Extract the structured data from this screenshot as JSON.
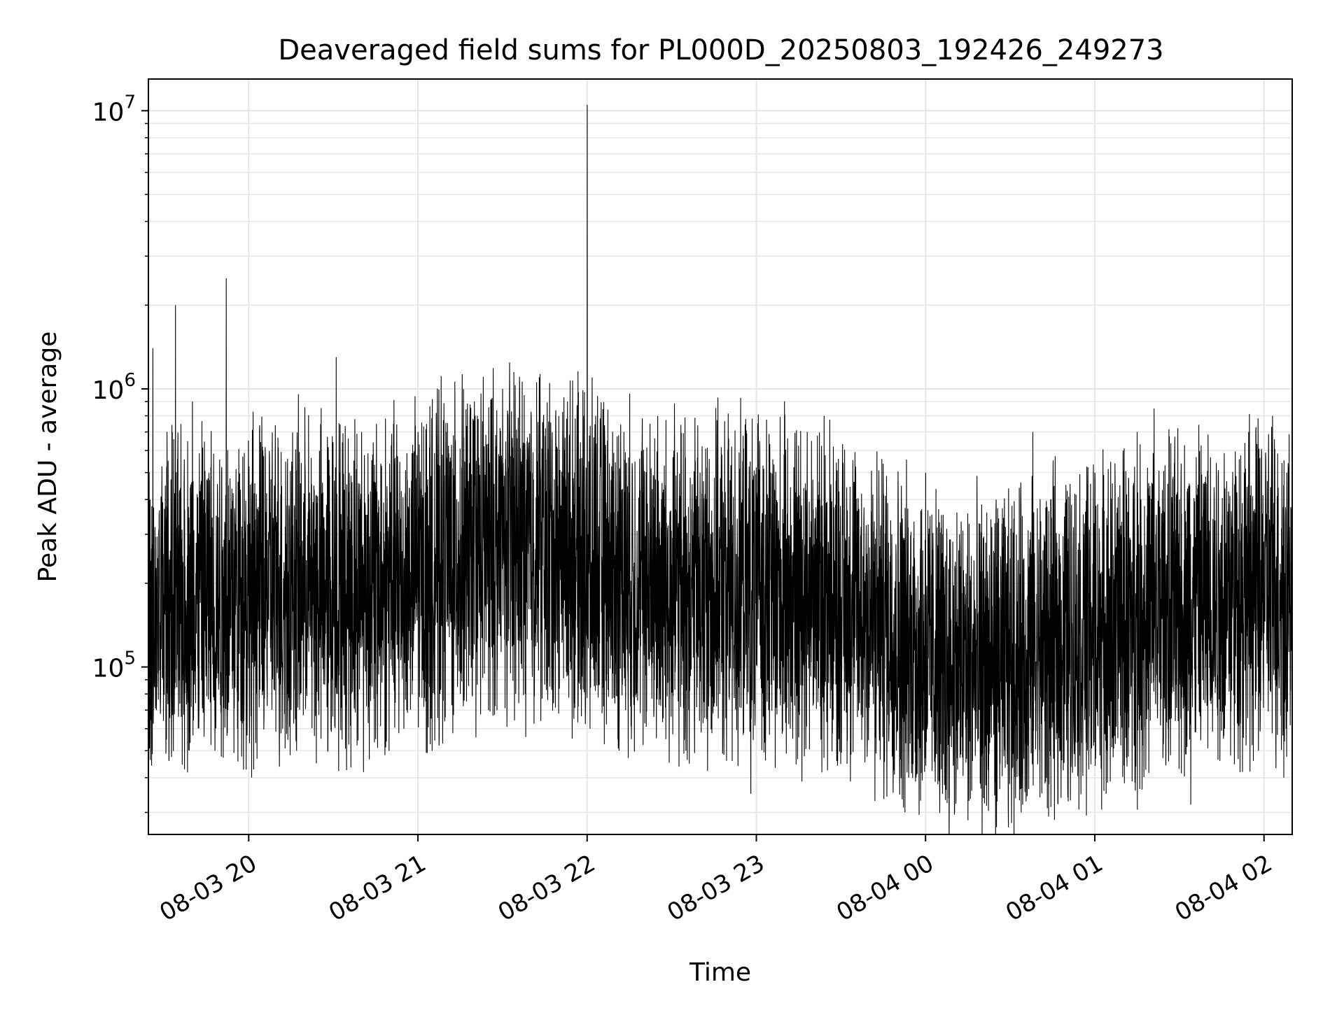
{
  "chart_data": {
    "type": "line",
    "title": "Deaveraged field sums for PL000D_20250803_192426_249273",
    "xlabel": "Time",
    "ylabel": "Peak ADU - average",
    "yscale": "log",
    "grid": true,
    "line_color": "#000000",
    "grid_color": "#e6e6e6",
    "xlim": [
      "2025-08-03 19:24:26",
      "2025-08-04 02:10:00"
    ],
    "ylim": [
      25000,
      13000000
    ],
    "x_ticks": [
      {
        "label": "08-03 20",
        "value": "2025-08-03 20:00"
      },
      {
        "label": "08-03 21",
        "value": "2025-08-03 21:00"
      },
      {
        "label": "08-03 22",
        "value": "2025-08-03 22:00"
      },
      {
        "label": "08-03 23",
        "value": "2025-08-03 23:00"
      },
      {
        "label": "08-04 00",
        "value": "2025-08-04 00:00"
      },
      {
        "label": "08-04 01",
        "value": "2025-08-04 01:00"
      },
      {
        "label": "08-04 02",
        "value": "2025-08-04 02:00"
      }
    ],
    "y_ticks": [
      {
        "base": "10",
        "exp": "5",
        "value": 100000
      },
      {
        "base": "10",
        "exp": "6",
        "value": 1000000
      },
      {
        "base": "10",
        "exp": "7",
        "value": 10000000
      }
    ],
    "series": [
      {
        "points": [
          [
            "2025-08-03 19:25",
            400000
          ],
          [
            "2025-08-03 19:26",
            1400000
          ],
          [
            "2025-08-03 19:28",
            120000
          ],
          [
            "2025-08-03 19:31",
            700000
          ],
          [
            "2025-08-03 19:34",
            2000000
          ],
          [
            "2025-08-03 19:37",
            80000
          ],
          [
            "2025-08-03 19:40",
            900000
          ],
          [
            "2025-08-03 19:44",
            400000
          ],
          [
            "2025-08-03 19:48",
            50000
          ],
          [
            "2025-08-03 19:52",
            2500000
          ],
          [
            "2025-08-03 19:56",
            60000
          ],
          [
            "2025-08-03 19:59",
            300000
          ],
          [
            "2025-08-03 20:01",
            40000
          ],
          [
            "2025-08-03 20:05",
            600000
          ],
          [
            "2025-08-03 20:12",
            60000
          ],
          [
            "2025-08-03 20:20",
            500000
          ],
          [
            "2025-08-03 20:28",
            50000
          ],
          [
            "2025-08-03 20:31",
            1300000
          ],
          [
            "2025-08-03 20:36",
            80000
          ],
          [
            "2025-08-03 20:40",
            700000
          ],
          [
            "2025-08-03 20:45",
            55000
          ],
          [
            "2025-08-03 20:50",
            400000
          ],
          [
            "2025-08-03 20:55",
            60000
          ],
          [
            "2025-08-03 21:00",
            700000
          ],
          [
            "2025-08-03 21:05",
            50000
          ],
          [
            "2025-08-03 21:10",
            700000
          ],
          [
            "2025-08-03 21:15",
            80000
          ],
          [
            "2025-08-03 21:20",
            900000
          ],
          [
            "2025-08-03 21:25",
            70000
          ],
          [
            "2025-08-03 21:30",
            1000000
          ],
          [
            "2025-08-03 21:34",
            1150000
          ],
          [
            "2025-08-03 21:38",
            80000
          ],
          [
            "2025-08-03 21:43",
            1100000
          ],
          [
            "2025-08-03 21:48",
            200000
          ],
          [
            "2025-08-03 21:53",
            900000
          ],
          [
            "2025-08-03 21:57",
            180000
          ],
          [
            "2025-08-03 22:00",
            10500000
          ],
          [
            "2025-08-03 22:01",
            60000
          ],
          [
            "2025-08-03 22:03",
            800000
          ],
          [
            "2025-08-03 22:08",
            150000
          ],
          [
            "2025-08-03 22:13",
            700000
          ],
          [
            "2025-08-03 22:18",
            120000
          ],
          [
            "2025-08-03 22:25",
            800000
          ],
          [
            "2025-08-03 22:35",
            50000
          ],
          [
            "2025-08-03 22:40",
            500000
          ],
          [
            "2025-08-03 22:47",
            80000
          ],
          [
            "2025-08-03 22:55",
            400000
          ],
          [
            "2025-08-03 22:58",
            35000
          ],
          [
            "2025-08-03 23:05",
            500000
          ],
          [
            "2025-08-03 23:12",
            60000
          ],
          [
            "2025-08-03 23:18",
            700000
          ],
          [
            "2025-08-03 23:24",
            800000
          ],
          [
            "2025-08-03 23:30",
            50000
          ],
          [
            "2025-08-03 23:36",
            400000
          ],
          [
            "2025-08-03 23:42",
            33000
          ],
          [
            "2025-08-03 23:48",
            300000
          ],
          [
            "2025-08-03 23:54",
            40000
          ],
          [
            "2025-08-04 00:00",
            500000
          ],
          [
            "2025-08-04 00:06",
            35000
          ],
          [
            "2025-08-04 00:12",
            300000
          ],
          [
            "2025-08-04 00:18",
            60000
          ],
          [
            "2025-08-04 00:25",
            400000
          ],
          [
            "2025-08-04 00:33",
            70000
          ],
          [
            "2025-08-04 00:38",
            700000
          ],
          [
            "2025-08-04 00:44",
            60000
          ],
          [
            "2025-08-04 00:50",
            400000
          ],
          [
            "2025-08-04 00:55",
            50000
          ],
          [
            "2025-08-04 01:00",
            500000
          ],
          [
            "2025-08-04 01:04",
            35000
          ],
          [
            "2025-08-04 01:10",
            600000
          ],
          [
            "2025-08-04 01:15",
            700000
          ],
          [
            "2025-08-04 01:18",
            100000
          ],
          [
            "2025-08-04 01:21",
            850000
          ],
          [
            "2025-08-04 01:26",
            60000
          ],
          [
            "2025-08-04 01:30",
            400000
          ],
          [
            "2025-08-04 01:34",
            32000
          ],
          [
            "2025-08-04 01:40",
            300000
          ],
          [
            "2025-08-04 01:46",
            60000
          ],
          [
            "2025-08-04 01:53",
            500000
          ],
          [
            "2025-08-04 01:58",
            50000
          ],
          [
            "2025-08-04 02:03",
            800000
          ],
          [
            "2025-08-04 02:07",
            40000
          ],
          [
            "2025-08-04 02:10",
            200000
          ]
        ]
      }
    ]
  }
}
